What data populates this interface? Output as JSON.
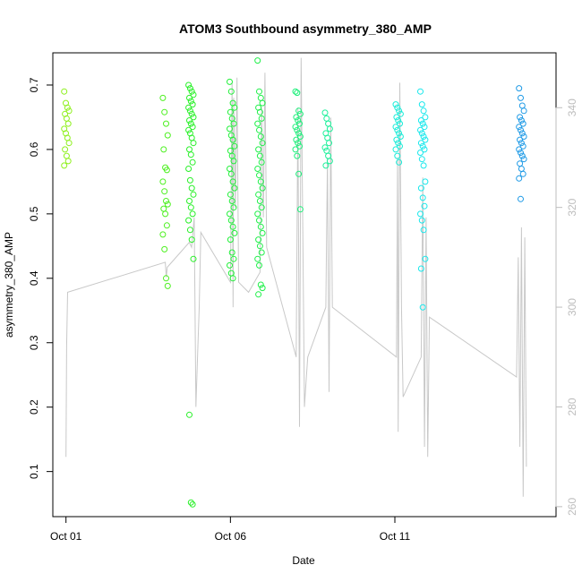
{
  "chart_data": {
    "type": "scatter",
    "title": "ATOM3 Southbound asymmetry_380_AMP",
    "xlabel": "Date",
    "ylabel": "asymmetry_380_AMP",
    "x_tick_labels": [
      "Oct 01",
      "Oct 06",
      "Oct 11"
    ],
    "x_tick_values": [
      1,
      6,
      11
    ],
    "xlim": [
      0.6,
      15.9
    ],
    "ylim": [
      0.03,
      0.75
    ],
    "y_ticks": [
      0.1,
      0.2,
      0.3,
      0.4,
      0.5,
      0.6,
      0.7
    ],
    "right_axis": {
      "ticks": [
        260,
        280,
        300,
        320,
        340
      ],
      "ylim": [
        258,
        351
      ],
      "color": "#bdbdbd"
    },
    "grid": false,
    "legend": "none",
    "colors": {
      "line_series": "#c8c8c8",
      "point_gradient": [
        "#7cfc00",
        "#00ff00",
        "#00ee76",
        "#00ffff",
        "#1e90ff"
      ]
    },
    "series": [
      {
        "kind": "points",
        "clusters": [
          {
            "x": 1.02,
            "color": "#8ef01c",
            "values": [
              0.69,
              0.672,
              0.665,
              0.66,
              0.655,
              0.648,
              0.64,
              0.632,
              0.625,
              0.618,
              0.61,
              0.6,
              0.59,
              0.582,
              0.575
            ]
          },
          {
            "x": 4.02,
            "color": "#4df020",
            "values": [
              0.68,
              0.658,
              0.64,
              0.622,
              0.6,
              0.572,
              0.568,
              0.55,
              0.535,
              0.52,
              0.515,
              0.508,
              0.5,
              0.482,
              0.468,
              0.445,
              0.4,
              0.388
            ]
          },
          {
            "x": 4.8,
            "color": "#28f028",
            "values": [
              0.7,
              0.695,
              0.69,
              0.685,
              0.68,
              0.675,
              0.67,
              0.665,
              0.66,
              0.655,
              0.65,
              0.645,
              0.64,
              0.635,
              0.63,
              0.625,
              0.618,
              0.61,
              0.6,
              0.592,
              0.58,
              0.57,
              0.552,
              0.54,
              0.53,
              0.52,
              0.51,
              0.5,
              0.49,
              0.475,
              0.46,
              0.43,
              0.188,
              0.052,
              0.049
            ]
          },
          {
            "x": 6.05,
            "color": "#22f03a",
            "values": [
              0.705,
              0.69,
              0.672,
              0.665,
              0.658,
              0.648,
              0.64,
              0.632,
              0.622,
              0.615,
              0.605,
              0.598,
              0.59,
              0.582,
              0.57,
              0.562,
              0.55,
              0.54,
              0.53,
              0.52,
              0.51,
              0.5,
              0.49,
              0.48,
              0.47,
              0.46,
              0.44,
              0.43,
              0.42,
              0.408,
              0.4
            ]
          },
          {
            "x": 6.9,
            "color": "#20f04a",
            "values": [
              0.738,
              0.69,
              0.68,
              0.672,
              0.665,
              0.658,
              0.648,
              0.64,
              0.63,
              0.62,
              0.61,
              0.6,
              0.59,
              0.58,
              0.57,
              0.56,
              0.55,
              0.54,
              0.53,
              0.52,
              0.51,
              0.5,
              0.49,
              0.48,
              0.47,
              0.46,
              0.45,
              0.44,
              0.43,
              0.42,
              0.39,
              0.385,
              0.375
            ]
          },
          {
            "x": 8.05,
            "color": "#1cf07a",
            "values": [
              0.69,
              0.688,
              0.66,
              0.655,
              0.65,
              0.645,
              0.64,
              0.635,
              0.63,
              0.625,
              0.62,
              0.615,
              0.61,
              0.605,
              0.6,
              0.59,
              0.562,
              0.507
            ]
          },
          {
            "x": 8.95,
            "color": "#1cf09a",
            "values": [
              0.657,
              0.648,
              0.64,
              0.632,
              0.625,
              0.618,
              0.61,
              0.603,
              0.598,
              0.59,
              0.582,
              0.575
            ]
          },
          {
            "x": 11.1,
            "color": "#18ecd8",
            "values": [
              0.67,
              0.665,
              0.66,
              0.655,
              0.65,
              0.645,
              0.64,
              0.635,
              0.63,
              0.625,
              0.62,
              0.615,
              0.61,
              0.605,
              0.6,
              0.59,
              0.58
            ]
          },
          {
            "x": 11.85,
            "color": "#18e8ec",
            "values": [
              0.69,
              0.67,
              0.66,
              0.65,
              0.645,
              0.64,
              0.635,
              0.63,
              0.625,
              0.62,
              0.615,
              0.61,
              0.605,
              0.6,
              0.595,
              0.585,
              0.575,
              0.55,
              0.54,
              0.525,
              0.512,
              0.5,
              0.49,
              0.475,
              0.43,
              0.415,
              0.355
            ]
          },
          {
            "x": 14.85,
            "color": "#1e9ae6",
            "values": [
              0.695,
              0.68,
              0.668,
              0.66,
              0.65,
              0.645,
              0.64,
              0.635,
              0.63,
              0.625,
              0.62,
              0.615,
              0.61,
              0.605,
              0.6,
              0.595,
              0.59,
              0.585,
              0.578,
              0.57,
              0.562,
              0.555,
              0.523
            ]
          }
        ]
      },
      {
        "kind": "line",
        "axis": "right",
        "description_points": [
          [
            1.0,
            270
          ],
          [
            1.02,
            292
          ],
          [
            1.05,
            303
          ],
          [
            4.02,
            309
          ],
          [
            4.05,
            306
          ],
          [
            4.08,
            308
          ],
          [
            4.75,
            313
          ],
          [
            4.82,
            312
          ],
          [
            4.9,
            318
          ],
          [
            4.95,
            280
          ],
          [
            5.0,
            290
          ],
          [
            5.05,
            300
          ],
          [
            5.1,
            315
          ],
          [
            6.0,
            305
          ],
          [
            6.05,
            345
          ],
          [
            6.08,
            300
          ],
          [
            6.1,
            342
          ],
          [
            6.15,
            320
          ],
          [
            6.2,
            346
          ],
          [
            6.25,
            305
          ],
          [
            6.55,
            303
          ],
          [
            6.9,
            307
          ],
          [
            6.95,
            340
          ],
          [
            7.0,
            318
          ],
          [
            7.05,
            347
          ],
          [
            7.1,
            312
          ],
          [
            8.0,
            290
          ],
          [
            8.05,
            340
          ],
          [
            8.1,
            276
          ],
          [
            8.15,
            350
          ],
          [
            8.2,
            315
          ],
          [
            8.25,
            280
          ],
          [
            8.3,
            285
          ],
          [
            8.35,
            290
          ],
          [
            8.9,
            300
          ],
          [
            8.95,
            330
          ],
          [
            9.0,
            283
          ],
          [
            9.05,
            338
          ],
          [
            9.1,
            300
          ],
          [
            11.05,
            290
          ],
          [
            11.08,
            330
          ],
          [
            11.1,
            275
          ],
          [
            11.15,
            345
          ],
          [
            11.2,
            300
          ],
          [
            11.25,
            282
          ],
          [
            11.8,
            290
          ],
          [
            11.85,
            326
          ],
          [
            11.9,
            272
          ],
          [
            11.95,
            318
          ],
          [
            12.0,
            270
          ],
          [
            12.05,
            298
          ],
          [
            14.7,
            286
          ],
          [
            14.75,
            310
          ],
          [
            14.8,
            272
          ],
          [
            14.85,
            316
          ],
          [
            14.9,
            262
          ],
          [
            14.95,
            314
          ],
          [
            15.0,
            268
          ]
        ]
      }
    ]
  }
}
